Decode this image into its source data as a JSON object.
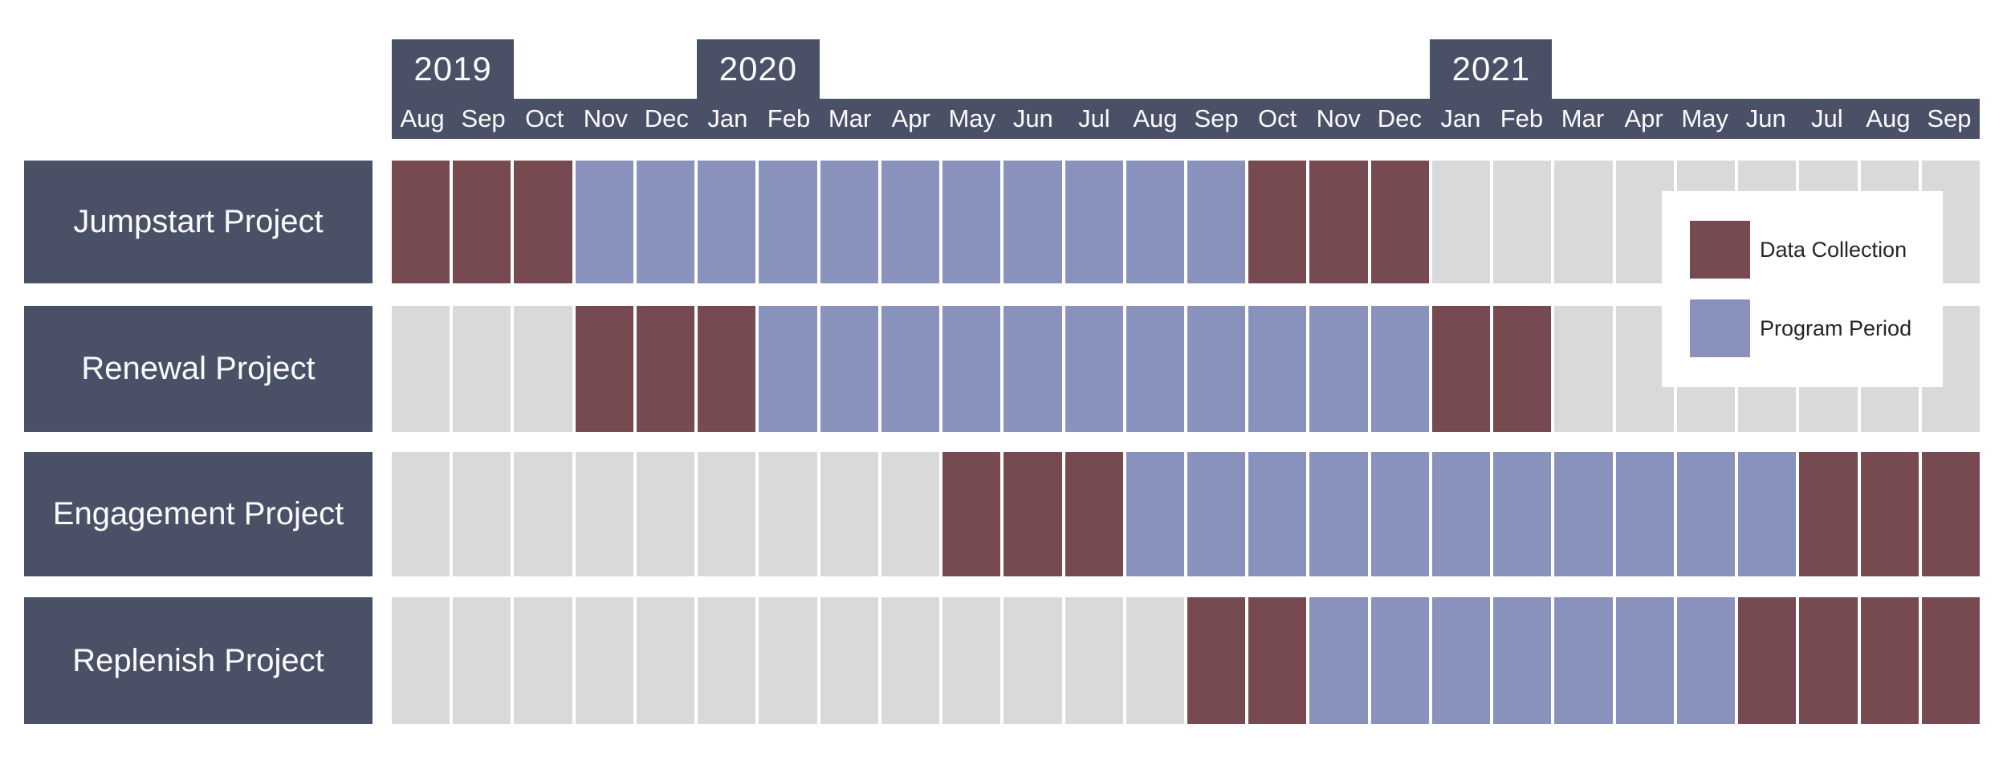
{
  "colors": {
    "header_bar": "#4A5166",
    "data_collection": "#764A50",
    "program_period": "#8991BD",
    "empty_month": "#D9D9D9",
    "background": "#FFFFFF",
    "header_text": "#FBFBFD",
    "legend_text": "#262626"
  },
  "timeline": {
    "months": [
      "Aug",
      "Sep",
      "Oct",
      "Nov",
      "Dec",
      "Jan",
      "Feb",
      "Mar",
      "Apr",
      "May",
      "Jun",
      "Jul",
      "Aug",
      "Sep",
      "Oct",
      "Nov",
      "Dec",
      "Jan",
      "Feb",
      "Mar",
      "Apr",
      "May",
      "Jun",
      "Jul",
      "Aug",
      "Sep"
    ],
    "years": [
      {
        "label": "2019",
        "start": 0,
        "span": 2
      },
      {
        "label": "2020",
        "start": 5,
        "span": 2
      },
      {
        "label": "2021",
        "start": 17,
        "span": 2
      }
    ]
  },
  "rows": [
    {
      "label": "Jumpstart Project",
      "cells": "DDDPPPPPPPPPPPDDDNNNNNNNNN"
    },
    {
      "label": "Renewal Project",
      "cells": "NNNDDDPPPPPPPPPPPDDNNNNNNN"
    },
    {
      "label": "Engagement Project",
      "cells": "NNNNNNNNNDDDPPPPPPPPPPPDDD"
    },
    {
      "label": "Replenish Project",
      "cells": "NNNNNNNNNNNNNDDPPPPPPPDDDD"
    }
  ],
  "legend": {
    "items": [
      {
        "label": "Data Collection",
        "key": "data_collection"
      },
      {
        "label": "Program Period",
        "key": "program_period"
      }
    ]
  },
  "chart_data": {
    "type": "heatmap",
    "title": "",
    "x": [
      "Aug 2019",
      "Sep 2019",
      "Oct 2019",
      "Nov 2019",
      "Dec 2019",
      "Jan 2020",
      "Feb 2020",
      "Mar 2020",
      "Apr 2020",
      "May 2020",
      "Jun 2020",
      "Jul 2020",
      "Aug 2020",
      "Sep 2020",
      "Oct 2020",
      "Nov 2020",
      "Dec 2020",
      "Jan 2021",
      "Feb 2021",
      "Mar 2021",
      "Apr 2021",
      "May 2021",
      "Jun 2021",
      "Jul 2021",
      "Aug 2021",
      "Sep 2021"
    ],
    "legend_entries": [
      "Data Collection",
      "Program Period"
    ],
    "value_meaning": {
      "D": "Data Collection",
      "P": "Program Period",
      "N": "no activity"
    },
    "series": [
      {
        "name": "Jumpstart Project",
        "values": [
          "D",
          "D",
          "D",
          "P",
          "P",
          "P",
          "P",
          "P",
          "P",
          "P",
          "P",
          "P",
          "P",
          "P",
          "D",
          "D",
          "D",
          "N",
          "N",
          "N",
          "N",
          "N",
          "N",
          "N",
          "N",
          "N"
        ]
      },
      {
        "name": "Renewal Project",
        "values": [
          "N",
          "N",
          "N",
          "D",
          "D",
          "D",
          "P",
          "P",
          "P",
          "P",
          "P",
          "P",
          "P",
          "P",
          "P",
          "P",
          "P",
          "D",
          "D",
          "N",
          "N",
          "N",
          "N",
          "N",
          "N",
          "N"
        ]
      },
      {
        "name": "Engagement Project",
        "values": [
          "N",
          "N",
          "N",
          "N",
          "N",
          "N",
          "N",
          "N",
          "N",
          "D",
          "D",
          "D",
          "P",
          "P",
          "P",
          "P",
          "P",
          "P",
          "P",
          "P",
          "P",
          "P",
          "P",
          "D",
          "D",
          "D"
        ]
      },
      {
        "name": "Replenish Project",
        "values": [
          "N",
          "N",
          "N",
          "N",
          "N",
          "N",
          "N",
          "N",
          "N",
          "N",
          "N",
          "N",
          "N",
          "D",
          "D",
          "P",
          "P",
          "P",
          "P",
          "P",
          "P",
          "P",
          "D",
          "D",
          "D",
          "D"
        ]
      }
    ],
    "segments": [
      {
        "name": "Jumpstart Project",
        "data_collection": [
          "Aug 2019-Oct 2019",
          "Oct 2020-Dec 2020"
        ],
        "program_period": [
          "Nov 2019-Sep 2020"
        ]
      },
      {
        "name": "Renewal Project",
        "data_collection": [
          "Nov 2019-Jan 2020",
          "Jan 2021-Feb 2021"
        ],
        "program_period": [
          "Feb 2020-Dec 2020"
        ]
      },
      {
        "name": "Engagement Project",
        "data_collection": [
          "May 2020-Jul 2020",
          "Jul 2021-Sep 2021"
        ],
        "program_period": [
          "Aug 2020-Jun 2021"
        ]
      },
      {
        "name": "Replenish Project",
        "data_collection": [
          "Sep 2020-Oct 2020",
          "Jun 2021-Sep 2021"
        ],
        "program_period": [
          "Nov 2020-May 2021"
        ]
      }
    ],
    "layout_hints": {
      "grid": "26 monthly columns",
      "legend_position": "overlaid upper right",
      "xlabel": "",
      "ylabel": ""
    }
  }
}
